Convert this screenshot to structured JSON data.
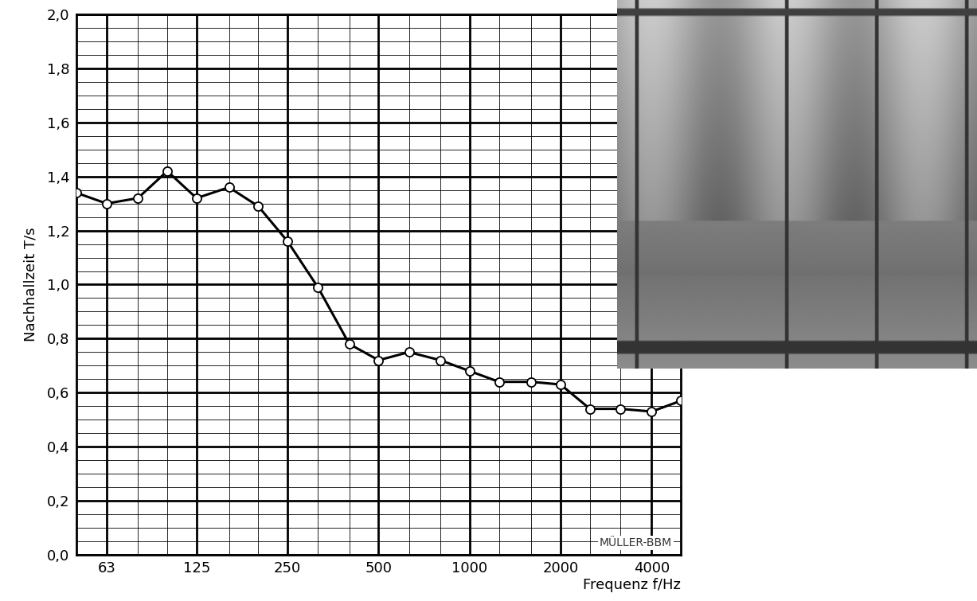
{
  "chart_data": {
    "type": "line",
    "x": [
      50,
      63,
      80,
      100,
      125,
      160,
      200,
      250,
      315,
      400,
      500,
      630,
      800,
      1000,
      1250,
      1600,
      2000,
      2500,
      3150,
      4000,
      5000
    ],
    "values": [
      1.34,
      1.3,
      1.32,
      1.42,
      1.32,
      1.36,
      1.29,
      1.16,
      0.99,
      0.78,
      0.72,
      0.75,
      0.72,
      0.68,
      0.64,
      0.64,
      0.63,
      0.54,
      0.54,
      0.53,
      0.57
    ],
    "x_label": "Frequenz f/Hz",
    "y_label": "Nachhallzeit T/s",
    "annotation": "MÜLLER-BBM",
    "xlim": [
      50,
      5000
    ],
    "xticks": [
      63,
      125,
      250,
      500,
      1000,
      2000,
      4000
    ],
    "ylim": [
      0,
      2.0
    ],
    "yticks": [
      {
        "value": 0,
        "label": "0,0"
      },
      {
        "value": 0.2,
        "label": "0,2"
      },
      {
        "value": 0.4,
        "label": "0,4"
      },
      {
        "value": 0.6,
        "label": "0,6"
      },
      {
        "value": 0.8,
        "label": "0,8"
      },
      {
        "value": 1.0,
        "label": "1,0"
      },
      {
        "value": 1.2,
        "label": "1,2"
      },
      {
        "value": 1.4,
        "label": "1,4"
      },
      {
        "value": 1.6,
        "label": "1,6"
      },
      {
        "value": 1.8,
        "label": "1,8"
      },
      {
        "value": 2.0,
        "label": "2,0"
      }
    ],
    "log": "x",
    "grid": true,
    "color": "#000000",
    "marker": "o",
    "line_style": "solid"
  }
}
